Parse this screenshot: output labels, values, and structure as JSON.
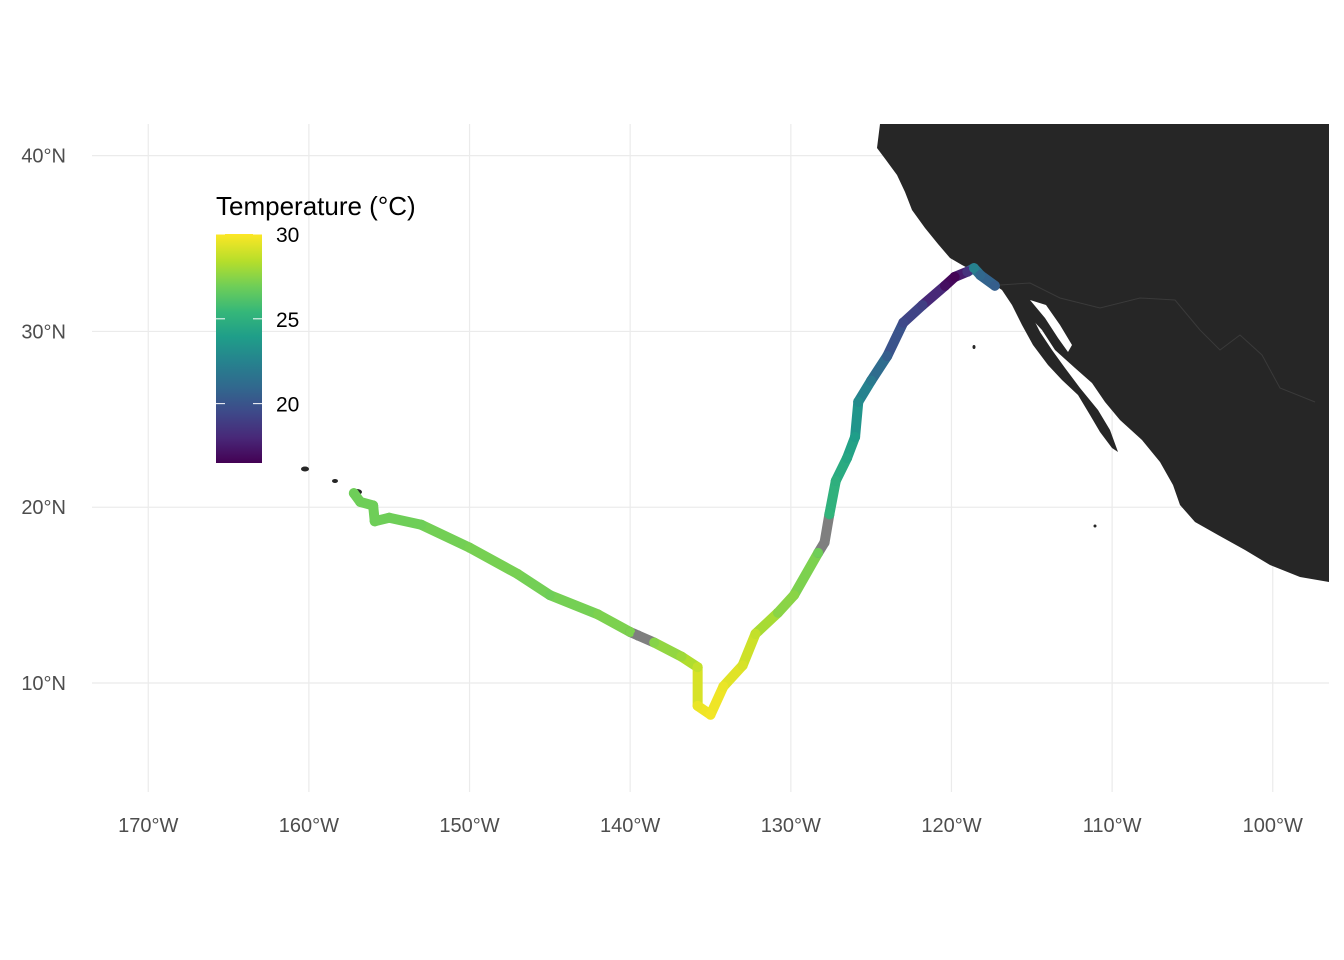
{
  "chart_data": {
    "type": "map-track",
    "projection": "equirectangular",
    "xlim": [
      -173.5,
      -96.5
    ],
    "ylim": [
      3.8,
      41.8
    ],
    "x_ticks": [
      {
        "value": -170,
        "label": "170°W"
      },
      {
        "value": -160,
        "label": "160°W"
      },
      {
        "value": -150,
        "label": "150°W"
      },
      {
        "value": -140,
        "label": "140°W"
      },
      {
        "value": -130,
        "label": "130°W"
      },
      {
        "value": -120,
        "label": "120°W"
      },
      {
        "value": -110,
        "label": "110°W"
      },
      {
        "value": -100,
        "label": "100°W"
      }
    ],
    "y_ticks": [
      {
        "value": 10,
        "label": "10°N"
      },
      {
        "value": 20,
        "label": "20°N"
      },
      {
        "value": 30,
        "label": "30°N"
      },
      {
        "value": 40,
        "label": "40°N"
      }
    ],
    "grid": true,
    "land_color": "#262626",
    "missing_color": "#7f7f7f",
    "legend": {
      "title": "Temperature (°C)",
      "placement": "top-left",
      "range": [
        16.5,
        30
      ],
      "breaks": [
        {
          "value": 30,
          "label": "30"
        },
        {
          "value": 25,
          "label": "25"
        },
        {
          "value": 20,
          "label": "20"
        }
      ],
      "colormap": "viridis"
    },
    "track": [
      {
        "lon": -157.2,
        "lat": 20.8,
        "temp": 27.0
      },
      {
        "lon": -156.8,
        "lat": 20.3,
        "temp": 27.0
      },
      {
        "lon": -156.0,
        "lat": 20.1,
        "temp": 27.0
      },
      {
        "lon": -155.9,
        "lat": 19.2,
        "temp": 27.0
      },
      {
        "lon": -155.0,
        "lat": 19.4,
        "temp": 27.0
      },
      {
        "lon": -153.0,
        "lat": 19.0,
        "temp": 27.0
      },
      {
        "lon": -150.0,
        "lat": 17.7,
        "temp": 27.2
      },
      {
        "lon": -147.0,
        "lat": 16.2,
        "temp": 27.2
      },
      {
        "lon": -145.0,
        "lat": 15.0,
        "temp": 27.0
      },
      {
        "lon": -142.0,
        "lat": 13.9,
        "temp": 27.3
      },
      {
        "lon": -140.0,
        "lat": 12.9,
        "temp": 27.3
      },
      {
        "lon": -139.5,
        "lat": 12.7,
        "temp": null
      },
      {
        "lon": -138.5,
        "lat": 12.3,
        "temp": 27.5
      },
      {
        "lon": -136.8,
        "lat": 11.5,
        "temp": 28.0
      },
      {
        "lon": -135.8,
        "lat": 10.9,
        "temp": 28.8
      },
      {
        "lon": -135.8,
        "lat": 8.7,
        "temp": 29.6
      },
      {
        "lon": -135.0,
        "lat": 8.2,
        "temp": 29.8
      },
      {
        "lon": -134.2,
        "lat": 9.8,
        "temp": 29.6
      },
      {
        "lon": -133.0,
        "lat": 11.0,
        "temp": 29.2
      },
      {
        "lon": -132.2,
        "lat": 12.8,
        "temp": 28.8
      },
      {
        "lon": -130.8,
        "lat": 14.0,
        "temp": 27.6
      },
      {
        "lon": -129.8,
        "lat": 15.0,
        "temp": 27.6
      },
      {
        "lon": -128.3,
        "lat": 17.4,
        "temp": 27.0
      },
      {
        "lon": -127.9,
        "lat": 18.0,
        "temp": null
      },
      {
        "lon": -127.6,
        "lat": 19.6,
        "temp": 25.3
      },
      {
        "lon": -127.2,
        "lat": 21.5,
        "temp": 25.0
      },
      {
        "lon": -126.5,
        "lat": 22.8,
        "temp": 24.5
      },
      {
        "lon": -126.0,
        "lat": 24.0,
        "temp": 24.0
      },
      {
        "lon": -125.8,
        "lat": 26.0,
        "temp": 23.0
      },
      {
        "lon": -125.0,
        "lat": 27.2,
        "temp": 22.0
      },
      {
        "lon": -124.0,
        "lat": 28.6,
        "temp": 20.5
      },
      {
        "lon": -123.0,
        "lat": 30.5,
        "temp": 19.5
      },
      {
        "lon": -121.8,
        "lat": 31.5,
        "temp": 19.0
      },
      {
        "lon": -120.4,
        "lat": 32.6,
        "temp": 17.0
      },
      {
        "lon": -119.8,
        "lat": 33.1,
        "temp": 16.6
      },
      {
        "lon": -119.0,
        "lat": 33.4,
        "temp": 18.5
      },
      {
        "lon": -118.6,
        "lat": 33.6,
        "temp": 22.5
      },
      {
        "lon": -118.2,
        "lat": 33.2,
        "temp": 21.0
      },
      {
        "lon": -117.3,
        "lat": 32.6,
        "temp": 20.5
      }
    ]
  }
}
